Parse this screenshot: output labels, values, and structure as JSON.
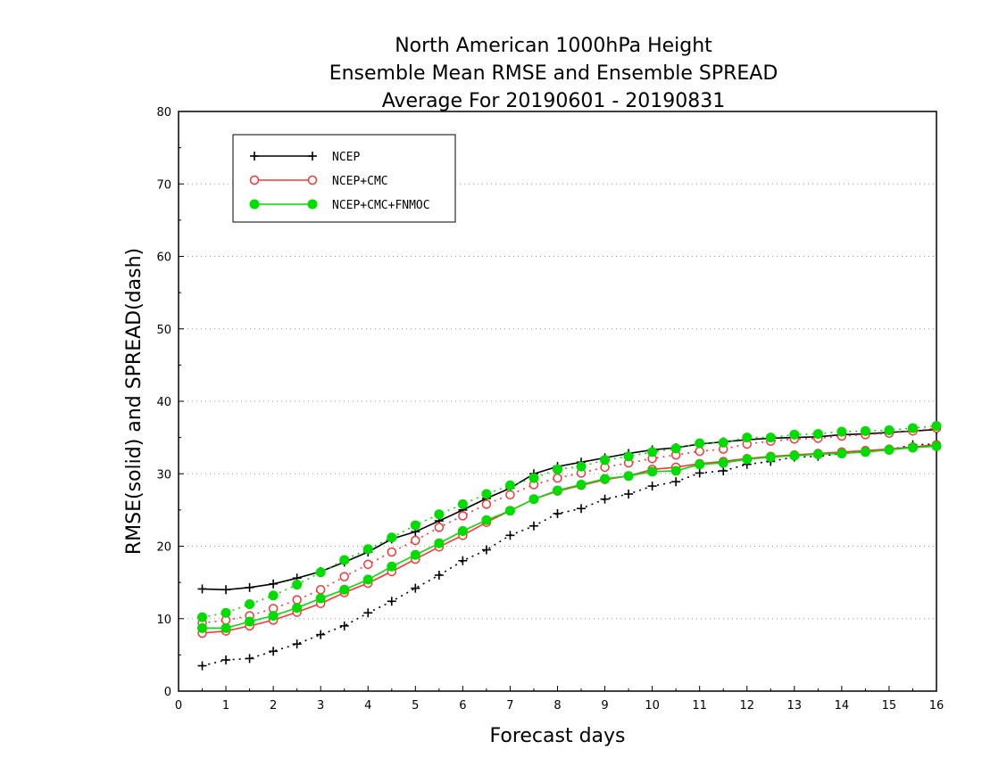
{
  "chart_data": {
    "type": "line",
    "title": [
      "North American 1000hPa Height",
      "Ensemble Mean RMSE and Ensemble SPREAD",
      "Average For 20190601 - 20190831"
    ],
    "xlabel": "Forecast days",
    "ylabel": "RMSE(solid) and SPREAD(dash)",
    "xlim": [
      0,
      16
    ],
    "ylim": [
      0,
      80
    ],
    "xticks": [
      "0",
      "1",
      "2",
      "3",
      "4",
      "5",
      "6",
      "7",
      "8",
      "9",
      "10",
      "11",
      "12",
      "13",
      "14",
      "15",
      "16"
    ],
    "yticks": [
      "0",
      "10",
      "20",
      "30",
      "40",
      "50",
      "60",
      "70",
      "80"
    ],
    "grid": true,
    "legend_position": "top-left",
    "x": [
      0.5,
      1,
      1.5,
      2,
      2.5,
      3,
      3.5,
      4,
      4.5,
      5,
      5.5,
      6,
      6.5,
      7,
      7.5,
      8,
      8.5,
      9,
      9.5,
      10,
      10.5,
      11,
      11.5,
      12,
      12.5,
      13,
      13.5,
      14,
      14.5,
      15,
      15.5,
      16
    ],
    "series": [
      {
        "name": "NCEP",
        "color": "#000000",
        "marker": "plus",
        "rmse": [
          14.1,
          14.0,
          14.3,
          14.8,
          15.6,
          16.5,
          17.8,
          19.2,
          21.0,
          22.0,
          23.5,
          25.0,
          26.6,
          28.0,
          30.0,
          31.0,
          31.6,
          32.2,
          32.8,
          33.3,
          33.6,
          34.1,
          34.4,
          34.7,
          34.9,
          35.0,
          35.1,
          35.4,
          35.5,
          35.7,
          35.9,
          36.1
        ],
        "spread": [
          3.5,
          4.3,
          4.5,
          5.5,
          6.5,
          7.8,
          9.0,
          10.8,
          12.4,
          14.2,
          16.0,
          18.0,
          19.5,
          21.5,
          22.8,
          24.5,
          25.2,
          26.5,
          27.2,
          28.3,
          28.9,
          30.1,
          30.4,
          31.3,
          31.7,
          32.3,
          32.4,
          32.8,
          33.1,
          33.3,
          34.0,
          34.1
        ]
      },
      {
        "name": "NCEP+CMC",
        "color": "#ff3333",
        "marker": "open-circle",
        "rmse": [
          8.0,
          8.3,
          9.0,
          9.8,
          10.9,
          12.1,
          13.6,
          14.9,
          16.5,
          18.2,
          19.9,
          21.5,
          23.3,
          24.9,
          26.5,
          27.6,
          28.4,
          29.2,
          29.7,
          30.6,
          30.9,
          31.4,
          31.7,
          32.1,
          32.4,
          32.6,
          32.8,
          33.0,
          33.2,
          33.4,
          33.7,
          34.0
        ],
        "spread": [
          9.4,
          9.8,
          10.4,
          11.4,
          12.6,
          14.0,
          15.8,
          17.5,
          19.2,
          20.8,
          22.6,
          24.2,
          25.8,
          27.1,
          28.5,
          29.4,
          30.1,
          30.9,
          31.5,
          32.1,
          32.6,
          33.1,
          33.4,
          34.1,
          34.5,
          34.8,
          34.9,
          35.2,
          35.4,
          35.6,
          35.9,
          36.3
        ]
      },
      {
        "name": "NCEP+CMC+FNMOC",
        "color": "#00dd00",
        "marker": "filled-circle",
        "rmse": [
          8.7,
          8.7,
          9.6,
          10.4,
          11.5,
          12.8,
          14.0,
          15.4,
          17.2,
          18.8,
          20.4,
          22.1,
          23.6,
          24.9,
          26.5,
          27.7,
          28.5,
          29.3,
          29.7,
          30.3,
          30.4,
          31.3,
          31.5,
          32.0,
          32.3,
          32.5,
          32.7,
          32.8,
          33.0,
          33.3,
          33.6,
          33.8
        ],
        "spread": [
          10.2,
          10.8,
          12.0,
          13.2,
          14.7,
          16.4,
          18.1,
          19.6,
          21.2,
          22.9,
          24.4,
          25.8,
          27.2,
          28.4,
          29.4,
          30.6,
          31.0,
          31.9,
          32.4,
          33.0,
          33.5,
          34.2,
          34.3,
          35.0,
          35.0,
          35.4,
          35.5,
          35.8,
          35.9,
          36.0,
          36.3,
          36.6
        ]
      }
    ]
  }
}
